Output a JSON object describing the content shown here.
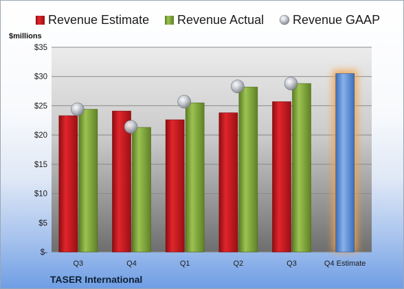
{
  "chart_data": {
    "type": "bar",
    "categories": [
      "Q3",
      "Q4",
      "Q1",
      "Q2",
      "Q3",
      "Q4 Estimate"
    ],
    "series": [
      {
        "name": "Revenue Estimate",
        "values": [
          23.3,
          24.1,
          22.6,
          23.8,
          25.7,
          null
        ],
        "color": "#c0141c",
        "style": "bar"
      },
      {
        "name": "Revenue Actual",
        "values": [
          24.4,
          21.3,
          25.5,
          28.2,
          28.8,
          null
        ],
        "color": "#7fa33a",
        "style": "bar"
      },
      {
        "name": "Revenue GAAP",
        "values": [
          24.4,
          21.4,
          25.7,
          28.3,
          28.8,
          null
        ],
        "color": "#b8bcc4",
        "style": "marker"
      },
      {
        "name": "Q4 Estimate",
        "values": [
          null,
          null,
          null,
          null,
          null,
          30.5
        ],
        "color": "#5b8fd6",
        "style": "highlight-bar"
      }
    ],
    "ylabel": "$millions",
    "ylim": [
      0,
      35
    ],
    "yticks": [
      "$-",
      "$5",
      "$10",
      "$15",
      "$20",
      "$25",
      "$30",
      "$35"
    ],
    "ytick_values": [
      0,
      5,
      10,
      15,
      20,
      25,
      30,
      35
    ],
    "grid": true,
    "legend_position": "top",
    "company": "TASER International"
  }
}
